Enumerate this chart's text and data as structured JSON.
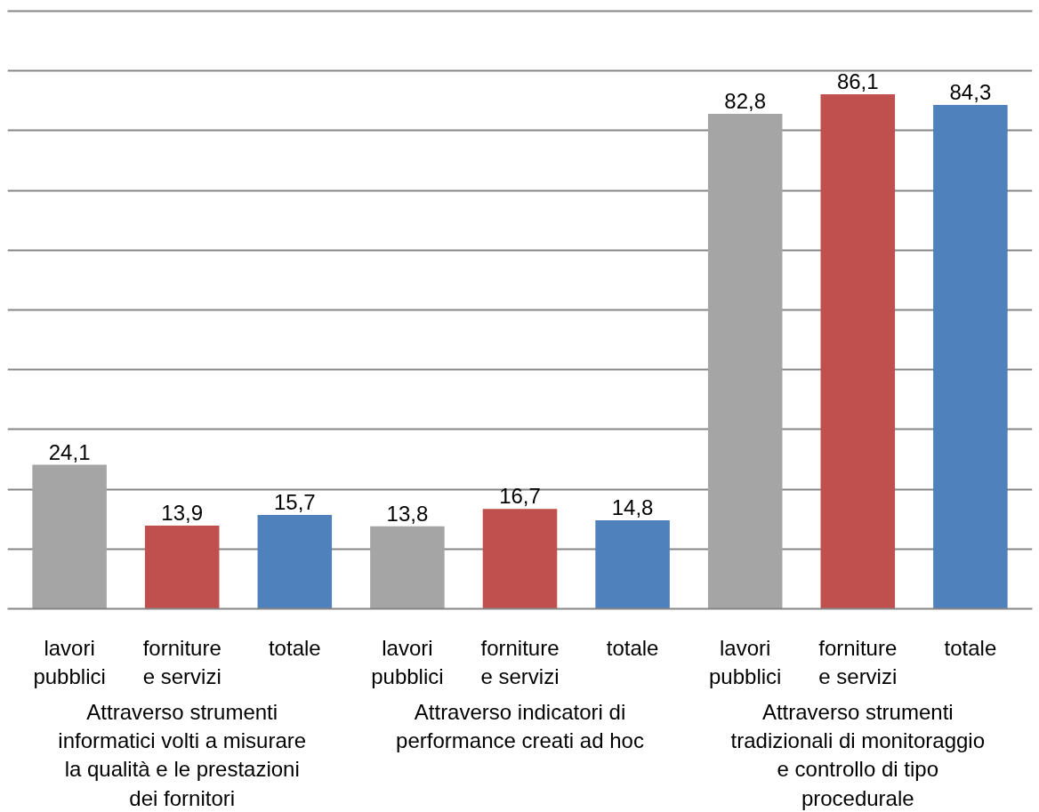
{
  "chart_data": {
    "type": "bar",
    "categories": [
      "lavori pubblici",
      "forniture e servizi",
      "totale",
      "lavori pubblici",
      "forniture e servizi",
      "totale",
      "lavori pubblici",
      "forniture e servizi",
      "totale"
    ],
    "values": [
      24.1,
      13.9,
      15.7,
      13.8,
      16.7,
      14.8,
      82.8,
      86.1,
      84.3
    ],
    "value_labels": [
      "24,1",
      "13,9",
      "15,7",
      "13,8",
      "16,7",
      "14,8",
      "82,8",
      "86,1",
      "84,3"
    ],
    "colors": [
      "#a5a5a5",
      "#c0504d",
      "#4f81bd",
      "#a5a5a5",
      "#c0504d",
      "#4f81bd",
      "#a5a5a5",
      "#c0504d",
      "#4f81bd"
    ],
    "annotations": [
      "Attraverso strumenti informatici volti a misurare la qualità e le prestazioni dei fornitori",
      "Attraverso indicatori di performance creati ad hoc",
      "Attraverso strumenti tradizionali di monitoraggio e controllo di tipo procedurale"
    ],
    "ylim": [
      0,
      100
    ],
    "yticks": [
      {
        "value": 0,
        "label": null
      },
      {
        "value": 10,
        "label": null
      },
      {
        "value": 20,
        "label": null
      },
      {
        "value": 30,
        "label": null
      },
      {
        "value": 40,
        "label": null
      },
      {
        "value": 50,
        "label": null
      },
      {
        "value": 60,
        "label": null
      },
      {
        "value": 70,
        "label": null
      },
      {
        "value": 80,
        "label": null
      },
      {
        "value": 90,
        "label": null
      },
      {
        "value": 100,
        "label": null
      }
    ],
    "grid": "y",
    "tick_labels": "x"
  }
}
